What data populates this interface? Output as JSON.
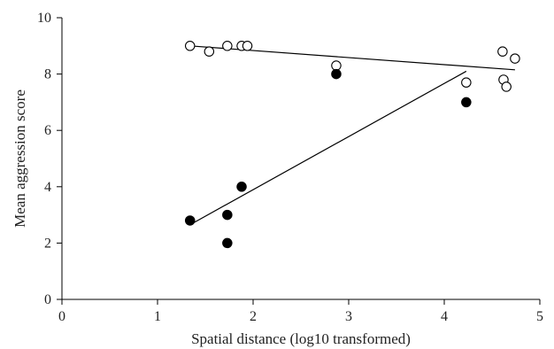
{
  "chart_data": {
    "type": "scatter",
    "xlabel": "Spatial distance (log10 transformed)",
    "ylabel": "Mean aggression score",
    "xlim": [
      0,
      5
    ],
    "ylim": [
      0,
      10
    ],
    "xticks": [
      0,
      1,
      2,
      3,
      4,
      5
    ],
    "yticks": [
      0,
      2,
      4,
      6,
      8,
      10
    ],
    "grid": false,
    "legend": "none",
    "series": [
      {
        "marker": "open-circle",
        "color": "#000000",
        "points": [
          {
            "x": 1.34,
            "y": 9.0
          },
          {
            "x": 1.54,
            "y": 8.8
          },
          {
            "x": 1.73,
            "y": 9.0
          },
          {
            "x": 1.88,
            "y": 9.0
          },
          {
            "x": 1.94,
            "y": 9.0
          },
          {
            "x": 2.87,
            "y": 8.3
          },
          {
            "x": 4.23,
            "y": 7.7
          },
          {
            "x": 4.61,
            "y": 8.8
          },
          {
            "x": 4.62,
            "y": 7.8
          },
          {
            "x": 4.65,
            "y": 7.55
          },
          {
            "x": 4.74,
            "y": 8.55
          }
        ],
        "trendline": {
          "x": [
            1.34,
            4.74
          ],
          "y": [
            9.0,
            8.15
          ]
        }
      },
      {
        "marker": "filled-circle",
        "color": "#000000",
        "points": [
          {
            "x": 1.34,
            "y": 2.8
          },
          {
            "x": 1.73,
            "y": 3.0
          },
          {
            "x": 1.73,
            "y": 2.0
          },
          {
            "x": 1.88,
            "y": 4.0
          },
          {
            "x": 2.87,
            "y": 8.0
          },
          {
            "x": 4.23,
            "y": 7.0
          }
        ],
        "trendline": {
          "x": [
            1.34,
            4.23
          ],
          "y": [
            2.65,
            8.1
          ]
        }
      }
    ]
  }
}
